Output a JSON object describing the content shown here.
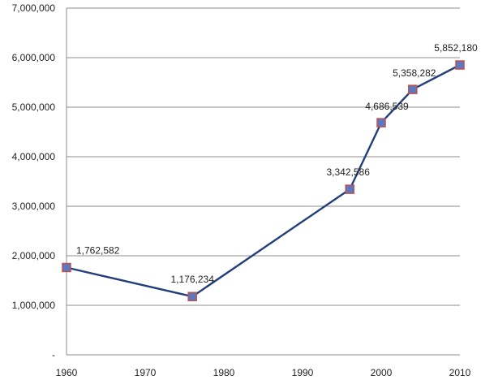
{
  "chart_data": {
    "type": "line",
    "title": "",
    "xlabel": "",
    "ylabel": "",
    "xlim": [
      1960,
      2010
    ],
    "ylim": [
      0,
      7000000
    ],
    "grid": true,
    "legend": "none",
    "x_ticks": [
      1960,
      1970,
      1980,
      1990,
      2000,
      2010
    ],
    "x_tick_labels": [
      "1960",
      "1970",
      "1980",
      "1990",
      "2000",
      "2010"
    ],
    "y_ticks": [
      0,
      1000000,
      2000000,
      3000000,
      4000000,
      5000000,
      6000000,
      7000000
    ],
    "y_tick_labels": [
      "-",
      "1,000,000",
      "2,000,000",
      "3,000,000",
      "4,000,000",
      "5,000,000",
      "6,000,000",
      "7,000,000"
    ],
    "series": [
      {
        "color": "#233f7a",
        "marker_fill": "#5b79c2",
        "marker_stroke": "#c0504d",
        "points": [
          {
            "x": 1960,
            "y": 1762582,
            "label": "1,762,582"
          },
          {
            "x": 1976,
            "y": 1176234,
            "label": "1,176,234"
          },
          {
            "x": 1996,
            "y": 3342586,
            "label": "3,342,586"
          },
          {
            "x": 2000,
            "y": 4686539,
            "label": "4,686,539"
          },
          {
            "x": 2004,
            "y": 5358282,
            "label": "5,358,282"
          },
          {
            "x": 2010,
            "y": 5852180,
            "label": "5,852,180"
          }
        ]
      }
    ]
  }
}
